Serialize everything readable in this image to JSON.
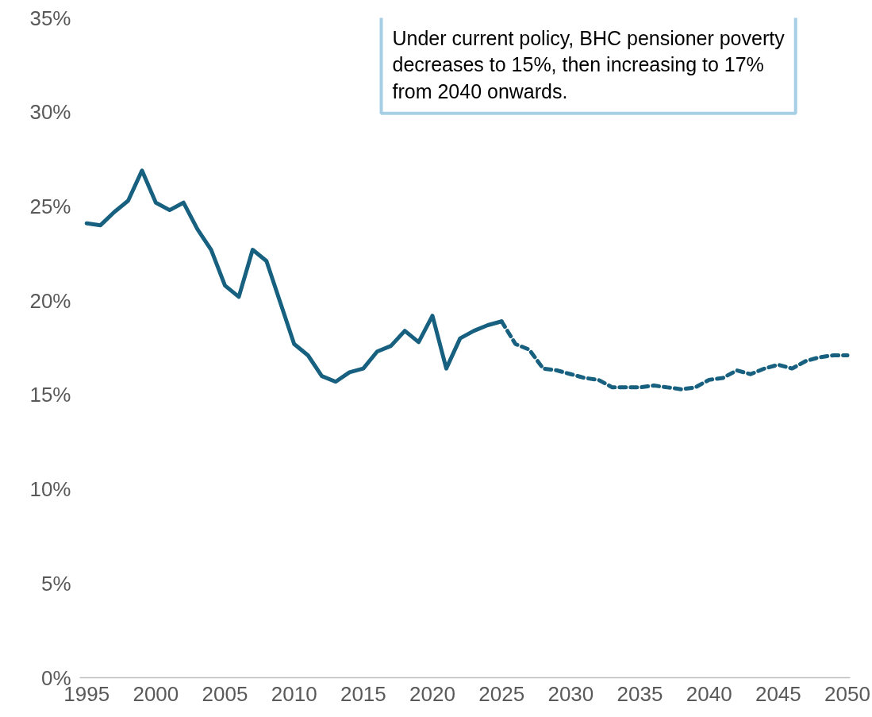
{
  "chart_data": {
    "type": "line",
    "annotations": [
      "Under current policy, BHC pensioner poverty decreases to 15%, then increasing to 17% from 2040 onwards."
    ],
    "series": [
      {
        "color": "#17607f",
        "line_style": "solid",
        "x": [
          1995,
          1996,
          1997,
          1998,
          1999,
          2000,
          2001,
          2002,
          2003,
          2004,
          2005,
          2006,
          2007,
          2008,
          2009,
          2010,
          2011,
          2012,
          2013,
          2014,
          2015,
          2016,
          2017,
          2018,
          2019,
          2020,
          2021,
          2022,
          2023,
          2024,
          2025
        ],
        "values": [
          24.1,
          24.0,
          24.7,
          25.3,
          26.9,
          25.2,
          24.8,
          25.2,
          23.8,
          22.7,
          20.8,
          20.2,
          22.7,
          22.1,
          19.9,
          17.7,
          17.1,
          16.0,
          15.7,
          16.2,
          16.4,
          17.3,
          17.6,
          18.4,
          17.8,
          19.2,
          16.4,
          18.0,
          18.4,
          18.7,
          18.9
        ]
      },
      {
        "color": "#17607f",
        "line_style": "dashed",
        "x": [
          2025,
          2026,
          2027,
          2028,
          2029,
          2030,
          2031,
          2032,
          2033,
          2034,
          2035,
          2036,
          2037,
          2038,
          2039,
          2040,
          2041,
          2042,
          2043,
          2044,
          2045,
          2046,
          2047,
          2048,
          2049,
          2050
        ],
        "values": [
          18.9,
          17.7,
          17.4,
          16.4,
          16.3,
          16.1,
          15.9,
          15.8,
          15.4,
          15.4,
          15.4,
          15.5,
          15.4,
          15.3,
          15.4,
          15.8,
          15.9,
          16.3,
          16.1,
          16.4,
          16.6,
          16.4,
          16.8,
          17.0,
          17.1,
          17.1
        ]
      }
    ],
    "xlim": [
      1994.5,
      2050.2
    ],
    "xticks": [
      1995,
      2000,
      2005,
      2010,
      2015,
      2020,
      2025,
      2030,
      2035,
      2040,
      2045,
      2050
    ],
    "ylim": [
      0,
      35
    ],
    "yticks": [
      {
        "value": 0,
        "label": "0%"
      },
      {
        "value": 5,
        "label": "5%"
      },
      {
        "value": 10,
        "label": "10%"
      },
      {
        "value": 15,
        "label": "15%"
      },
      {
        "value": 20,
        "label": "20%"
      },
      {
        "value": 25,
        "label": "25%"
      },
      {
        "value": 30,
        "label": "30%"
      },
      {
        "value": 35,
        "label": "35%"
      }
    ],
    "grid": false
  }
}
